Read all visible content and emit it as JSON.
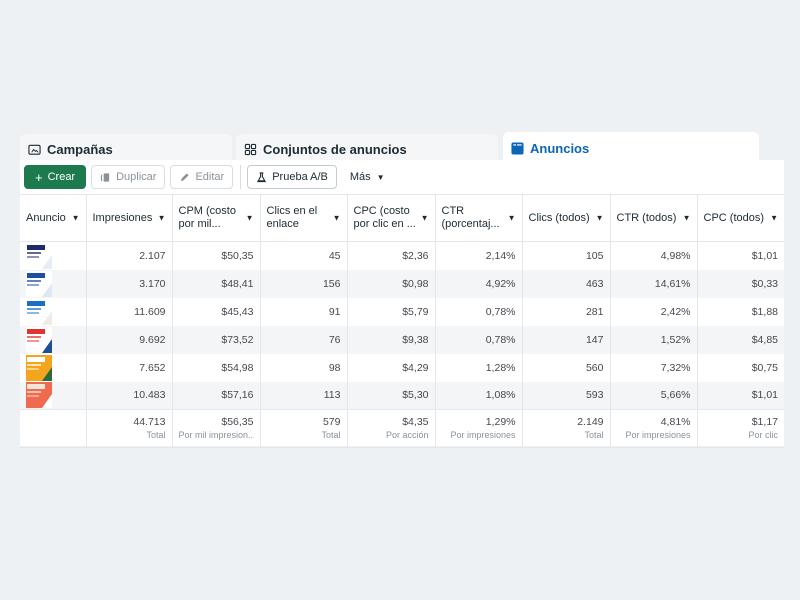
{
  "tabs": [
    {
      "label": "Campañas",
      "icon": "folder-icon",
      "active": false
    },
    {
      "label": "Conjuntos de anuncios",
      "icon": "grid-icon",
      "active": false
    },
    {
      "label": "Anuncios",
      "icon": "ad-icon",
      "active": true
    }
  ],
  "toolbar": {
    "create_label": "Crear",
    "duplicate_label": "Duplicar",
    "edit_label": "Editar",
    "ab_test_label": "Prueba A/B",
    "more_label": "Más"
  },
  "colors": {
    "primary": "#1d7a4f",
    "active_tab": "#0a66b7",
    "background": "#eef1f4"
  },
  "table": {
    "columns": [
      "Anuncio",
      "Impresiones",
      "CPM (costo por mil...",
      "Clics en el enlace",
      "CPC (costo por clic en ...",
      "CTR (porcentaj...",
      "Clics (todos)",
      "CTR (todos)",
      "CPC (todos)"
    ],
    "rows": [
      {
        "thumb": "ad-thumbnail-1",
        "impresiones": "2.107",
        "cpm": "$50,35",
        "clics_enlace": "45",
        "cpc": "$2,36",
        "ctr": "2,14%",
        "clics_todos": "105",
        "ctr_todos": "4,98%",
        "cpc_todos": "$1,01"
      },
      {
        "thumb": "ad-thumbnail-2",
        "impresiones": "3.170",
        "cpm": "$48,41",
        "clics_enlace": "156",
        "cpc": "$0,98",
        "ctr": "4,92%",
        "clics_todos": "463",
        "ctr_todos": "14,61%",
        "cpc_todos": "$0,33"
      },
      {
        "thumb": "ad-thumbnail-3",
        "impresiones": "11.609",
        "cpm": "$45,43",
        "clics_enlace": "91",
        "cpc": "$5,79",
        "ctr": "0,78%",
        "clics_todos": "281",
        "ctr_todos": "2,42%",
        "cpc_todos": "$1,88"
      },
      {
        "thumb": "ad-thumbnail-4",
        "impresiones": "9.692",
        "cpm": "$73,52",
        "clics_enlace": "76",
        "cpc": "$9,38",
        "ctr": "0,78%",
        "clics_todos": "147",
        "ctr_todos": "1,52%",
        "cpc_todos": "$4,85"
      },
      {
        "thumb": "ad-thumbnail-5",
        "impresiones": "7.652",
        "cpm": "$54,98",
        "clics_enlace": "98",
        "cpc": "$4,29",
        "ctr": "1,28%",
        "clics_todos": "560",
        "ctr_todos": "7,32%",
        "cpc_todos": "$0,75"
      },
      {
        "thumb": "ad-thumbnail-6",
        "impresiones": "10.483",
        "cpm": "$57,16",
        "clics_enlace": "113",
        "cpc": "$5,30",
        "ctr": "1,08%",
        "clics_todos": "593",
        "ctr_todos": "5,66%",
        "cpc_todos": "$1,01"
      }
    ],
    "totals": {
      "impresiones": {
        "value": "44.713",
        "label": "Total"
      },
      "cpm": {
        "value": "$56,35",
        "label": "Por mil impresion..."
      },
      "clics_enlace": {
        "value": "579",
        "label": "Total"
      },
      "cpc": {
        "value": "$4,35",
        "label": "Por acción"
      },
      "ctr": {
        "value": "1,29%",
        "label": "Por impresiones"
      },
      "clics_todos": {
        "value": "2.149",
        "label": "Total"
      },
      "ctr_todos": {
        "value": "4,81%",
        "label": "Por impresiones"
      },
      "cpc_todos": {
        "value": "$1,17",
        "label": "Por clic"
      }
    }
  }
}
